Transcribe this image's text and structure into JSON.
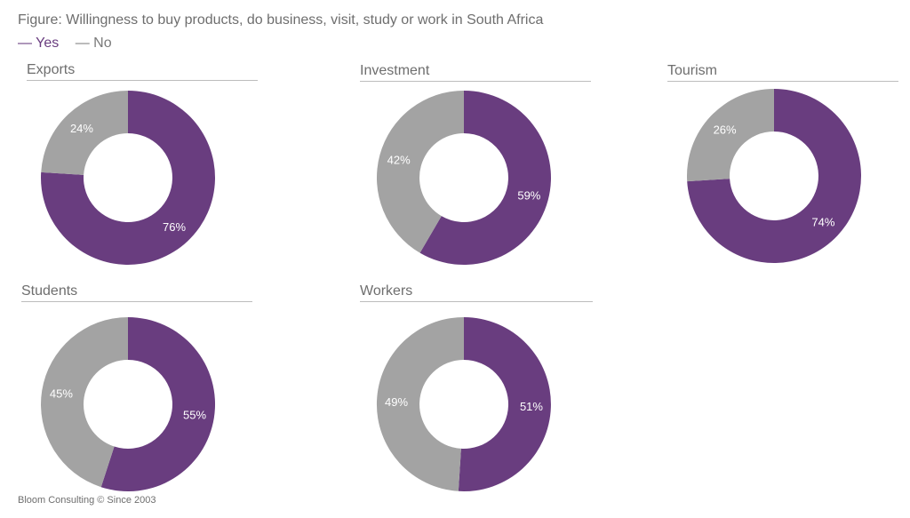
{
  "title": "Figure: Willingness to buy products, do business, visit, study or work in South Africa",
  "legend": [
    {
      "label": "— Yes",
      "color": "#693d7f"
    },
    {
      "label": "— No",
      "color": "#7a7a7a"
    }
  ],
  "colors": {
    "yes": "#693d7f",
    "no": "#a3a3a3",
    "label": "#ffffff"
  },
  "footer": "Bloom Consulting © Since 2003",
  "chart_data": [
    {
      "type": "pie",
      "title": "Exports",
      "series": [
        {
          "name": "Yes",
          "value": 76
        },
        {
          "name": "No",
          "value": 24
        }
      ],
      "labels": [
        "76%",
        "24%"
      ]
    },
    {
      "type": "pie",
      "title": "Investment",
      "series": [
        {
          "name": "Yes",
          "value": 59
        },
        {
          "name": "No",
          "value": 42
        }
      ],
      "labels": [
        "59%",
        "42%"
      ]
    },
    {
      "type": "pie",
      "title": "Tourism",
      "series": [
        {
          "name": "Yes",
          "value": 74
        },
        {
          "name": "No",
          "value": 26
        }
      ],
      "labels": [
        "74%",
        "26%"
      ]
    },
    {
      "type": "pie",
      "title": "Students",
      "series": [
        {
          "name": "Yes",
          "value": 55
        },
        {
          "name": "No",
          "value": 45
        }
      ],
      "labels": [
        "55%",
        "45%"
      ]
    },
    {
      "type": "pie",
      "title": "Workers",
      "series": [
        {
          "name": "Yes",
          "value": 51
        },
        {
          "name": "No",
          "value": 49
        }
      ],
      "labels": [
        "51%",
        "49%"
      ]
    }
  ]
}
